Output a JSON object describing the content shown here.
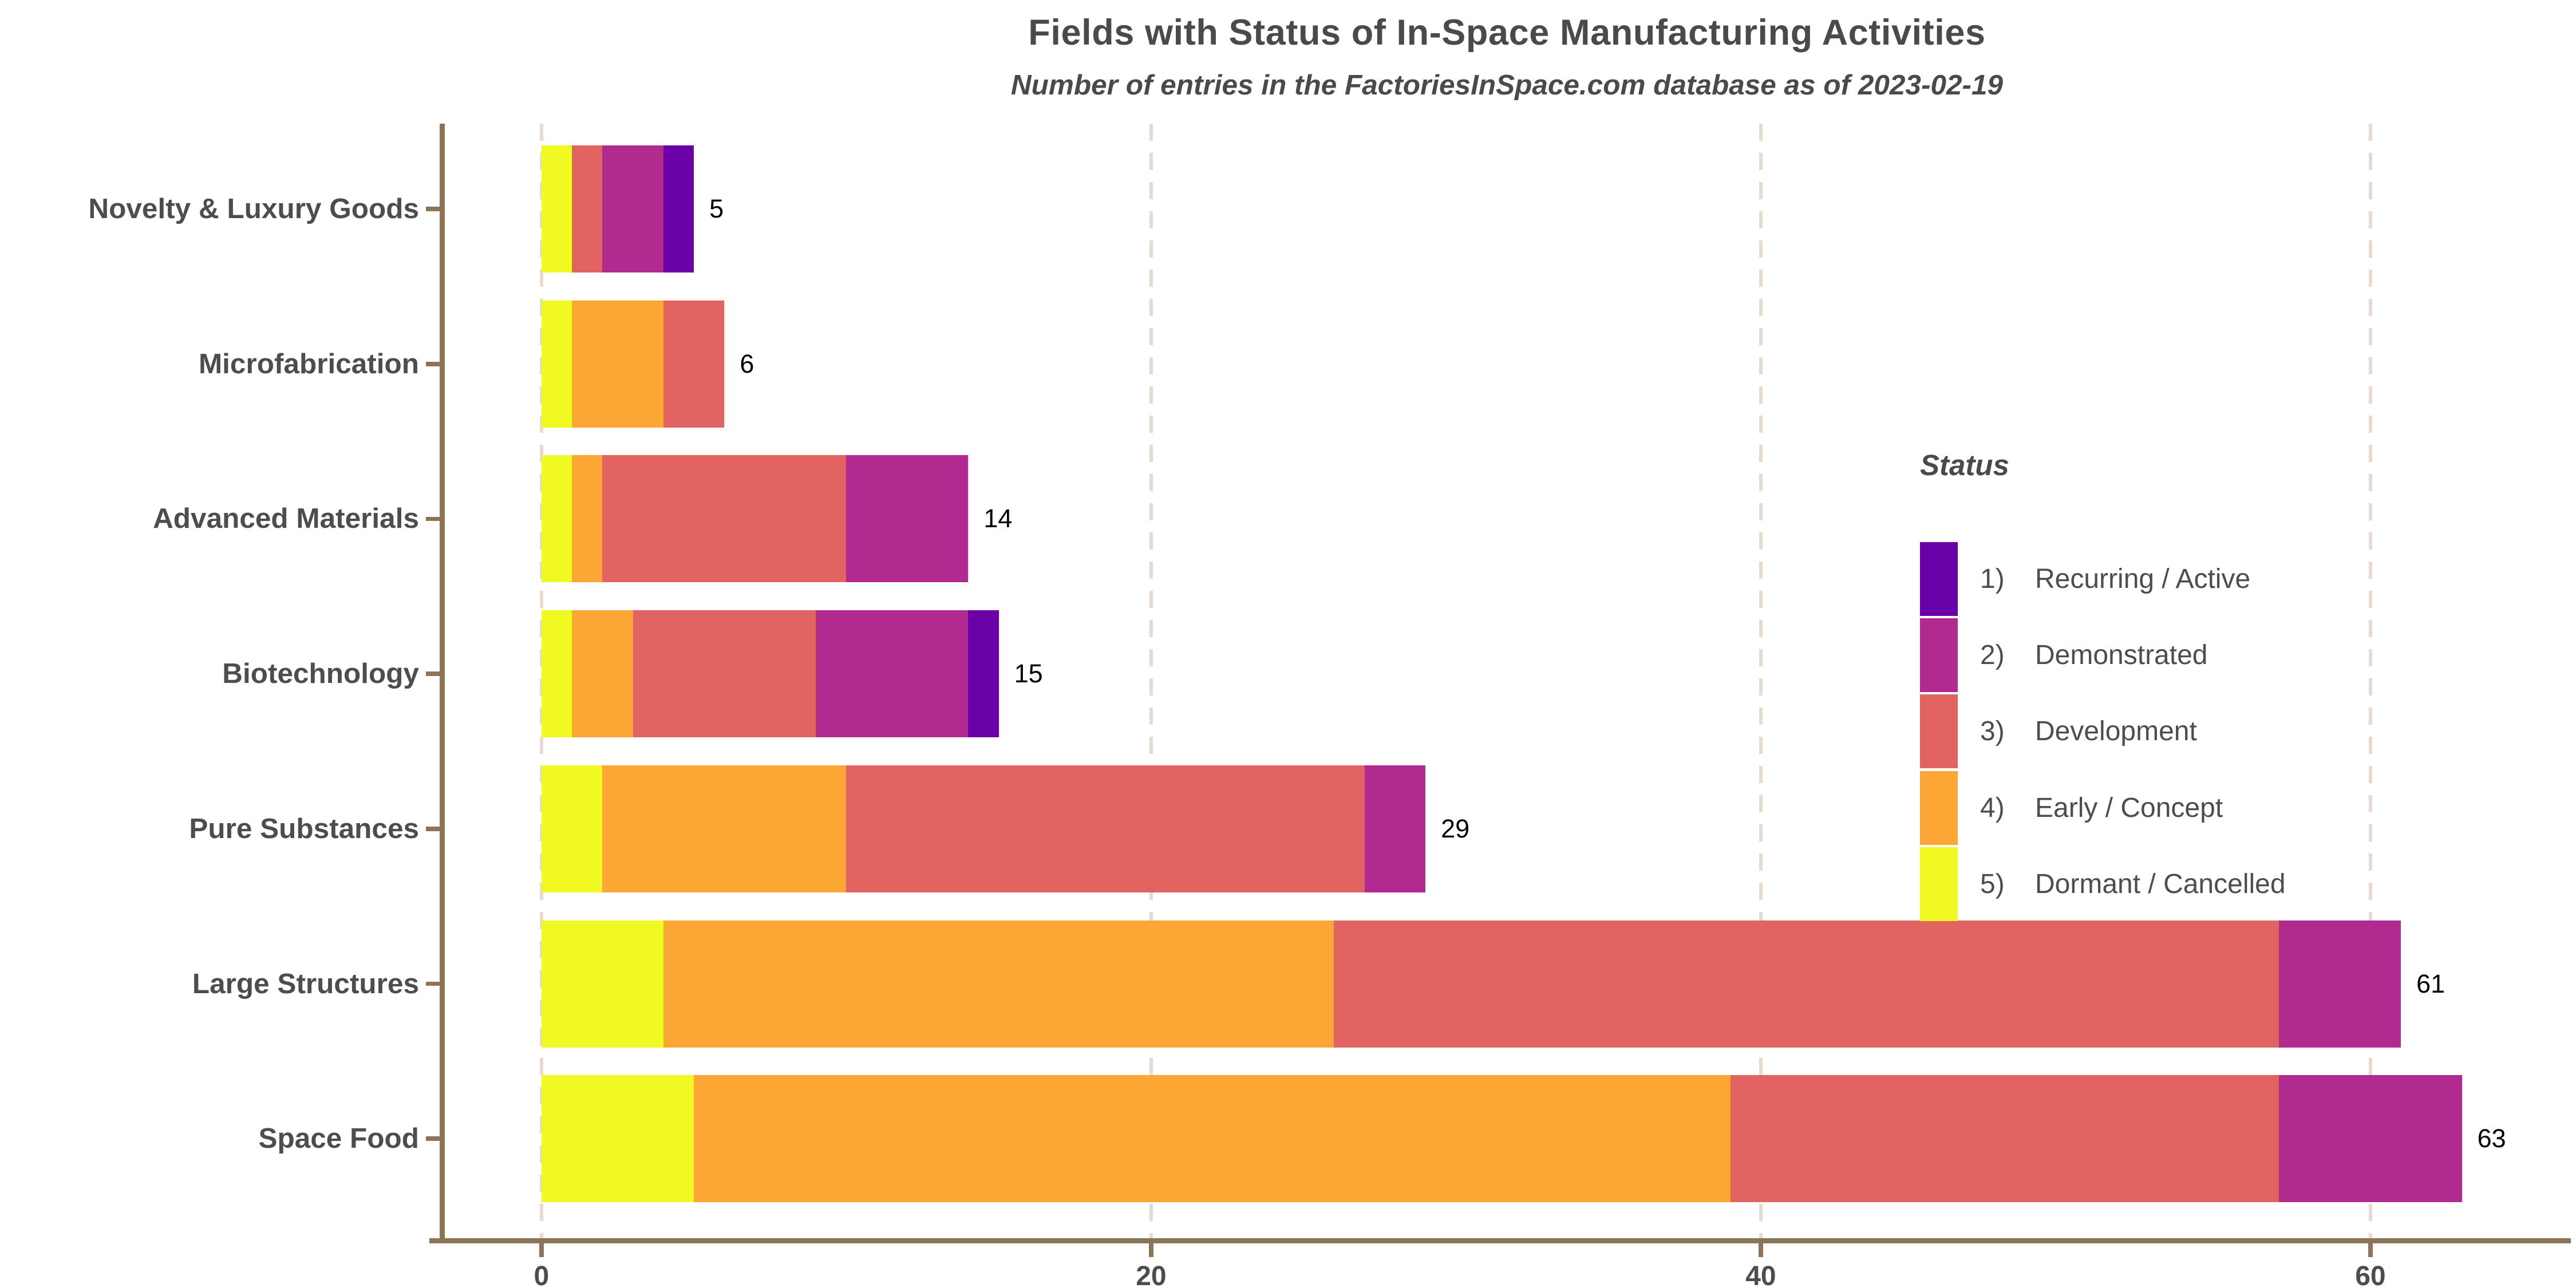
{
  "title": "Fields with Status of In-Space Manufacturing Activities",
  "subtitle": "Number of entries in the FactoriesInSpace.com database as of 2023-02-19",
  "legend": {
    "title": "Status",
    "items": [
      {
        "num": "1)",
        "label": "Recurring / Active",
        "color": "#6A00A8"
      },
      {
        "num": "2)",
        "label": "Demonstrated",
        "color": "#B12A90"
      },
      {
        "num": "3)",
        "label": "Development",
        "color": "#E16462"
      },
      {
        "num": "4)",
        "label": "Early / Concept",
        "color": "#FCA636"
      },
      {
        "num": "5)",
        "label": "Dormant / Cancelled",
        "color": "#F0F921"
      }
    ]
  },
  "chart_data": {
    "type": "bar",
    "orientation": "horizontal",
    "stacked": true,
    "title": "Fields with Status of In-Space Manufacturing Activities",
    "subtitle": "Number of entries in the FactoriesInSpace.com database as of 2023-02-19",
    "categories": [
      "Novelty & Luxury Goods",
      "Microfabrication",
      "Advanced Materials",
      "Biotechnology",
      "Pure Substances",
      "Large Structures",
      "Space Food"
    ],
    "series": [
      {
        "name": "1) Recurring / Active",
        "color": "#6A00A8",
        "values": [
          1,
          0,
          0,
          1,
          0,
          0,
          0
        ]
      },
      {
        "name": "2) Demonstrated",
        "color": "#B12A90",
        "values": [
          2,
          0,
          4,
          5,
          2,
          4,
          6
        ]
      },
      {
        "name": "3) Development",
        "color": "#E16462",
        "values": [
          1,
          2,
          8,
          6,
          17,
          31,
          18
        ]
      },
      {
        "name": "4) Early / Concept",
        "color": "#FCA636",
        "values": [
          0,
          3,
          1,
          2,
          8,
          22,
          34
        ]
      },
      {
        "name": "5) Dormant / Cancelled",
        "color": "#F0F921",
        "values": [
          1,
          1,
          1,
          1,
          2,
          4,
          5
        ]
      }
    ],
    "stack_order_left_to_right": [
      "5) Dormant / Cancelled",
      "4) Early / Concept",
      "3) Development",
      "2) Demonstrated",
      "1) Recurring / Active"
    ],
    "totals": [
      5,
      6,
      14,
      15,
      29,
      61,
      63
    ],
    "total_labels": [
      "5",
      "6",
      "14",
      "15",
      "29",
      "61",
      "63"
    ],
    "xlabel": "",
    "ylabel": "",
    "x_ticks": [
      0,
      20,
      40,
      60
    ],
    "x_tick_labels": [
      "0",
      "20",
      "40",
      "60"
    ],
    "xlim": [
      0,
      63
    ],
    "grid": "dashed vertical lines at major x ticks",
    "legend_position": "right-inside",
    "axis_color": "#8C7459",
    "gridline_color": "#E7DAD1",
    "label_color": "#4D4D4D",
    "value_label_color": "#000000"
  }
}
